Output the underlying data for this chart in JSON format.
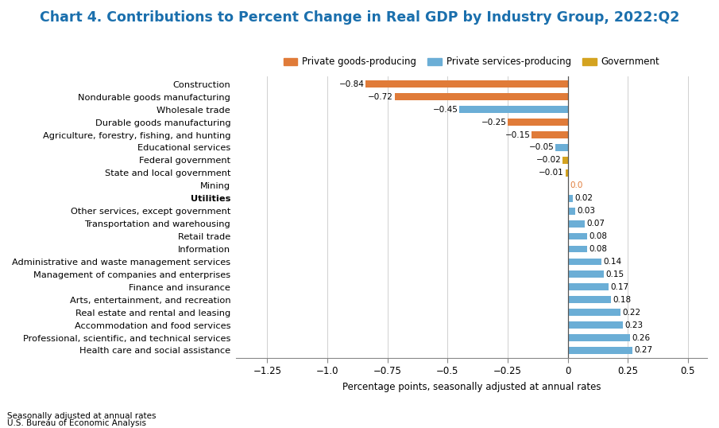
{
  "title": "Chart 4. Contributions to Percent Change in Real GDP by Industry Group, 2022:Q2",
  "title_color": "#1a6fad",
  "xlabel": "Percentage points, seasonally adjusted at annual rates",
  "footnote1": "Seasonally adjusted at annual rates",
  "footnote2": "U.S. Bureau of Economic Analysis",
  "categories": [
    "Health care and social assistance",
    "Professional, scientific, and technical services",
    "Accommodation and food services",
    "Real estate and rental and leasing",
    "Arts, entertainment, and recreation",
    "Finance and insurance",
    "Management of companies and enterprises",
    "Administrative and waste management services",
    "Information",
    "Retail trade",
    "Transportation and warehousing",
    "Other services, except government",
    "Utilities",
    "Mining",
    "State and local government",
    "Federal government",
    "Educational services",
    "Agriculture, forestry, fishing, and hunting",
    "Durable goods manufacturing",
    "Wholesale trade",
    "Nondurable goods manufacturing",
    "Construction"
  ],
  "values": [
    0.27,
    0.26,
    0.23,
    0.22,
    0.18,
    0.17,
    0.15,
    0.14,
    0.08,
    0.08,
    0.07,
    0.03,
    0.02,
    0.0,
    -0.01,
    -0.02,
    -0.05,
    -0.15,
    -0.25,
    -0.45,
    -0.72,
    -0.84
  ],
  "colors": [
    "#6baed6",
    "#6baed6",
    "#6baed6",
    "#6baed6",
    "#6baed6",
    "#6baed6",
    "#6baed6",
    "#6baed6",
    "#6baed6",
    "#6baed6",
    "#6baed6",
    "#6baed6",
    "#6baed6",
    "#e07b39",
    "#d4a320",
    "#d4a320",
    "#6baed6",
    "#e07b39",
    "#e07b39",
    "#6baed6",
    "#e07b39",
    "#e07b39"
  ],
  "legend": [
    {
      "label": "Private goods-producing",
      "color": "#e07b39"
    },
    {
      "label": "Private services-producing",
      "color": "#6baed6"
    },
    {
      "label": "Government",
      "color": "#d4a320"
    }
  ],
  "xlim": [
    -1.38,
    0.58
  ],
  "xticks": [
    -1.25,
    -1.0,
    -0.75,
    -0.5,
    -0.25,
    0.0,
    0.25,
    0.5
  ],
  "xtick_labels": [
    "−1.25",
    "−1.0",
    "−0.75",
    "−0.5",
    "−0.25",
    "0",
    "0.25",
    "0.5"
  ],
  "bar_height": 0.55,
  "mining_label_color": "#e07b39",
  "label_values": [
    "0.27",
    "0.26",
    "0.23",
    "0.22",
    "0.18",
    "0.17",
    "0.15",
    "0.14",
    "0.08",
    "0.08",
    "0.07",
    "0.03",
    "0.02",
    "0.0",
    "−0.01",
    "−0.02",
    "−0.05",
    "−0.15",
    "−0.25",
    "−0.45",
    "−0.72",
    "−0.84"
  ]
}
